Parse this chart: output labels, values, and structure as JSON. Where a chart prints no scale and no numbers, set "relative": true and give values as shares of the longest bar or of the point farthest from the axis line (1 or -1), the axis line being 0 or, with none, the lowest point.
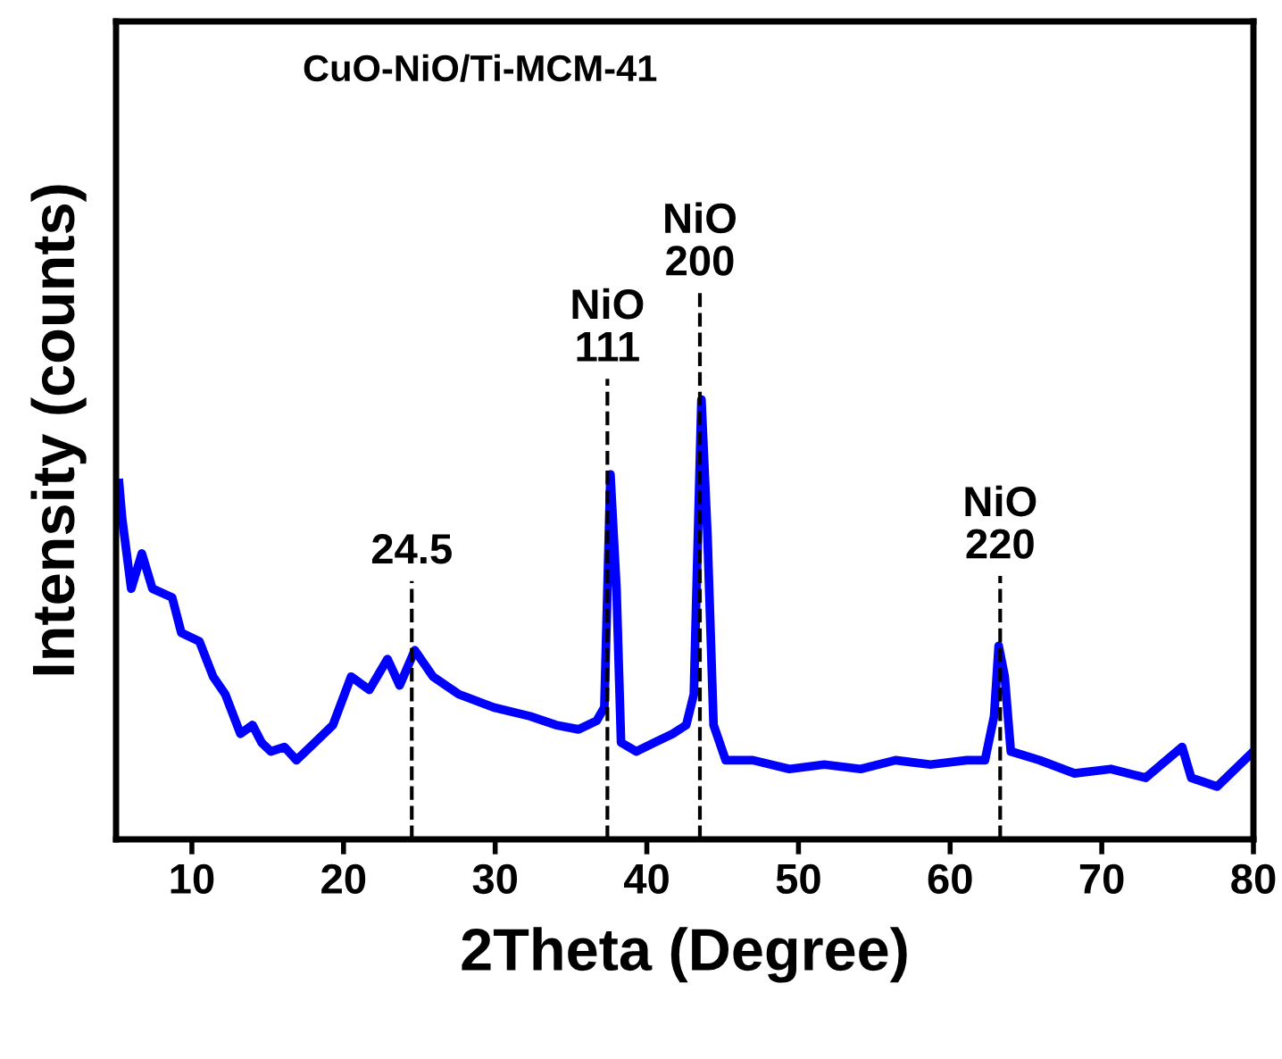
{
  "chart_data": {
    "type": "line",
    "title": "CuO-NiO/Ti-MCM-41",
    "xlabel": "2Theta (Degree)",
    "ylabel": "Intensity (counts)",
    "relative": true,
    "xlim": [
      5,
      80
    ],
    "xticks": [
      10,
      20,
      30,
      40,
      50,
      60,
      70,
      80
    ],
    "grid": false,
    "legend": false,
    "marker": "none",
    "line_style": "solid",
    "series": [
      {
        "color": "#0000ff",
        "x": [
          5.2,
          5.4,
          6.0,
          6.7,
          7.4,
          8.7,
          9.3,
          10.5,
          11.4,
          12.2,
          13.2,
          14.0,
          14.6,
          15.2,
          16.1,
          16.9,
          18.1,
          19.3,
          20.5,
          21.7,
          22.9,
          23.7,
          24.7,
          25.9,
          27.6,
          29.9,
          32.3,
          34.0,
          35.5,
          36.7,
          37.2,
          37.6,
          38.0,
          38.3,
          39.3,
          40.5,
          41.7,
          42.6,
          43.1,
          43.6,
          44.0,
          44.4,
          45.2,
          47.0,
          49.4,
          51.7,
          54.1,
          56.4,
          58.7,
          61.1,
          62.3,
          62.9,
          63.2,
          63.6,
          64.0,
          65.9,
          68.2,
          70.6,
          72.9,
          75.3,
          75.9,
          77.6,
          78.8,
          80.0
        ],
        "values": [
          0.81,
          0.73,
          0.57,
          0.65,
          0.57,
          0.55,
          0.47,
          0.45,
          0.37,
          0.33,
          0.24,
          0.26,
          0.22,
          0.2,
          0.21,
          0.18,
          0.22,
          0.26,
          0.37,
          0.34,
          0.41,
          0.35,
          0.43,
          0.37,
          0.33,
          0.3,
          0.28,
          0.26,
          0.25,
          0.27,
          0.3,
          0.83,
          0.57,
          0.22,
          0.2,
          0.22,
          0.24,
          0.26,
          0.33,
          1.0,
          0.69,
          0.26,
          0.18,
          0.18,
          0.16,
          0.17,
          0.16,
          0.18,
          0.17,
          0.18,
          0.18,
          0.28,
          0.44,
          0.37,
          0.2,
          0.18,
          0.15,
          0.16,
          0.14,
          0.21,
          0.14,
          0.12,
          0.16,
          0.2
        ]
      }
    ],
    "ref_lines": [
      {
        "axis": "x",
        "value": 24.5,
        "label": "24.5",
        "line_style": "dashed",
        "color": "#000000"
      },
      {
        "axis": "x",
        "value": 37.4,
        "label": "NiO\n111",
        "line_style": "dashed",
        "color": "#000000"
      },
      {
        "axis": "x",
        "value": 43.5,
        "label": "NiO\n200",
        "line_style": "dashed",
        "color": "#000000"
      },
      {
        "axis": "x",
        "value": 63.3,
        "label": "NiO\n220",
        "line_style": "dashed",
        "color": "#000000"
      }
    ]
  }
}
